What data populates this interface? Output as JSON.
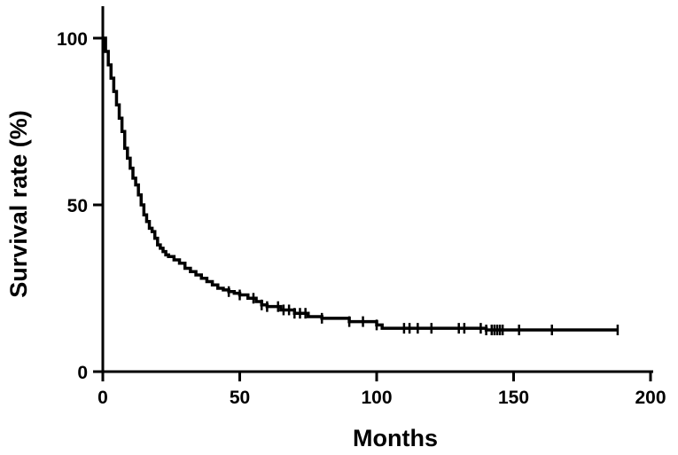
{
  "chart_data": {
    "type": "line",
    "subtype": "kaplan-meier survival curve",
    "title": "",
    "xlabel": "Months",
    "ylabel": "Survival rate (%)",
    "xlim": [
      0,
      200
    ],
    "ylim": [
      0,
      110
    ],
    "xticks": [
      0,
      50,
      100,
      150,
      200
    ],
    "yticks": [
      0,
      50,
      100
    ],
    "grid": false,
    "legend": "none",
    "line_color": "#000000",
    "series": [
      {
        "step": true,
        "x": [
          0,
          1,
          2,
          3,
          4,
          5,
          6,
          7,
          8,
          9,
          10,
          11,
          12,
          13,
          14,
          15,
          16,
          17,
          18,
          19,
          20,
          21,
          22,
          23,
          24,
          26,
          28,
          30,
          32,
          34,
          36,
          38,
          40,
          42,
          44,
          46,
          48,
          50,
          53,
          56,
          58,
          60,
          65,
          70,
          75,
          80,
          90,
          100,
          102,
          110,
          120,
          130,
          140,
          145,
          150,
          160,
          170,
          180,
          188
        ],
        "y": [
          100,
          96,
          92,
          88,
          84,
          80,
          76,
          72,
          67,
          64,
          61,
          58,
          56,
          53,
          50,
          47,
          45,
          43,
          42,
          40,
          38,
          37,
          36,
          35,
          34.5,
          33.5,
          32.5,
          31,
          30,
          29,
          28,
          27,
          26,
          25,
          24.5,
          24,
          23.5,
          23,
          22,
          21,
          20,
          19.5,
          18.5,
          17.5,
          16.5,
          16,
          15,
          14,
          13,
          13,
          13,
          13,
          12.5,
          12.5,
          12.5,
          12.5,
          12.5,
          12.5,
          12.5
        ]
      }
    ],
    "censored_x": [
      46,
      50,
      55,
      58,
      60,
      64,
      66,
      68,
      70,
      72,
      74,
      80,
      90,
      95,
      100,
      110,
      112,
      115,
      120,
      130,
      132,
      138,
      140,
      142,
      143,
      144,
      145,
      146,
      152,
      164,
      188
    ]
  }
}
